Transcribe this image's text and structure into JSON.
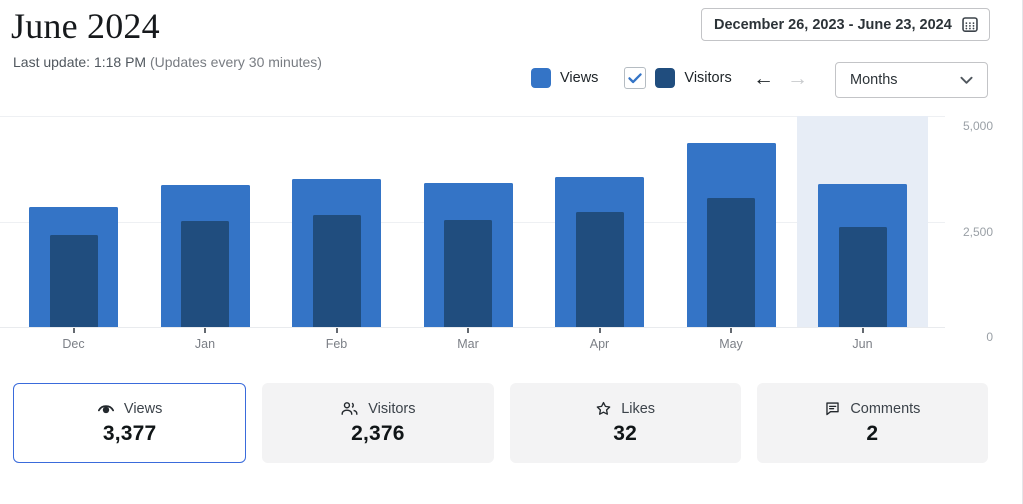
{
  "header": {
    "title": "June 2024",
    "last_update": "Last update: 1:18 PM",
    "update_note": "(Updates every 30 minutes)",
    "date_range": "December 26, 2023 - June 23, 2024"
  },
  "controls": {
    "legend": [
      {
        "label": "Views",
        "color": "#3474c6",
        "has_checkbox": false
      },
      {
        "label": "Visitors",
        "color": "#204d7e",
        "has_checkbox": true,
        "checked": true
      }
    ],
    "prev_arrow": "←",
    "next_arrow": "→",
    "next_arrow_disabled": true,
    "interval_select": {
      "value": "Months"
    }
  },
  "chart_data": {
    "type": "bar",
    "categories": [
      "Dec",
      "Jan",
      "Feb",
      "Mar",
      "Apr",
      "May",
      "Jun"
    ],
    "series": [
      {
        "name": "Views",
        "color": "#3474c6",
        "values": [
          2850,
          3360,
          3500,
          3410,
          3550,
          4360,
          3377
        ]
      },
      {
        "name": "Visitors",
        "color": "#204d7e",
        "values": [
          2180,
          2510,
          2650,
          2540,
          2720,
          3060,
          2376
        ]
      }
    ],
    "ylim": [
      0,
      5000
    ],
    "yticks": [
      0,
      2500,
      5000
    ],
    "ytick_labels": [
      "0",
      "2,500",
      "5,000"
    ],
    "highlighted_category": "Jun",
    "highlight_color": "#e7edf6",
    "grid": true,
    "legend_position": "top-right"
  },
  "colors": {
    "views_bar": "#3474c6",
    "visitors_bar": "#204d7e",
    "selected_card_border": "#3a6bdb",
    "checkbox_check": "#3474c6",
    "highlight_background": "#e7edf6"
  },
  "summary_cards": [
    {
      "icon": "eye-icon",
      "label": "Views",
      "value": "3,377",
      "selected": true
    },
    {
      "icon": "people-icon",
      "label": "Visitors",
      "value": "2,376",
      "selected": false
    },
    {
      "icon": "star-icon",
      "label": "Likes",
      "value": "32",
      "selected": false
    },
    {
      "icon": "comment-icon",
      "label": "Comments",
      "value": "2",
      "selected": false
    }
  ]
}
